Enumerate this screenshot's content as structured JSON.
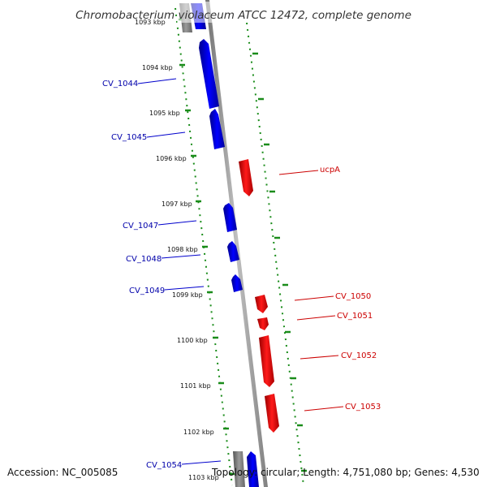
{
  "title": "Chromobacterium violaceum ATCC 12472, complete genome",
  "footer": {
    "accession": "Accession: NC_005085",
    "topology": "Topology: circular; Length: 4,751,080 bp; Genes: 4,530"
  },
  "ticks": [
    "1093 kbp",
    "1094 kbp",
    "1095 kbp",
    "1096 kbp",
    "1097 kbp",
    "1098 kbp",
    "1099 kbp",
    "1100 kbp",
    "1101 kbp",
    "1102 kbp",
    "1103 kbp"
  ],
  "genes_left": [
    "CV_1044",
    "CV_1045",
    "CV_1047",
    "CV_1048",
    "CV_1049",
    "CV_1054"
  ],
  "genes_right": [
    "ucpA",
    "CV_1050",
    "CV_1051",
    "CV_1052",
    "CV_1053"
  ],
  "colors": {
    "forward_strand": "#0000ee",
    "reverse_strand": "#ee0000",
    "gc_track": "#228b22",
    "backbone": "#999999",
    "left_label": "#0000aa",
    "right_label": "#cc0000"
  }
}
